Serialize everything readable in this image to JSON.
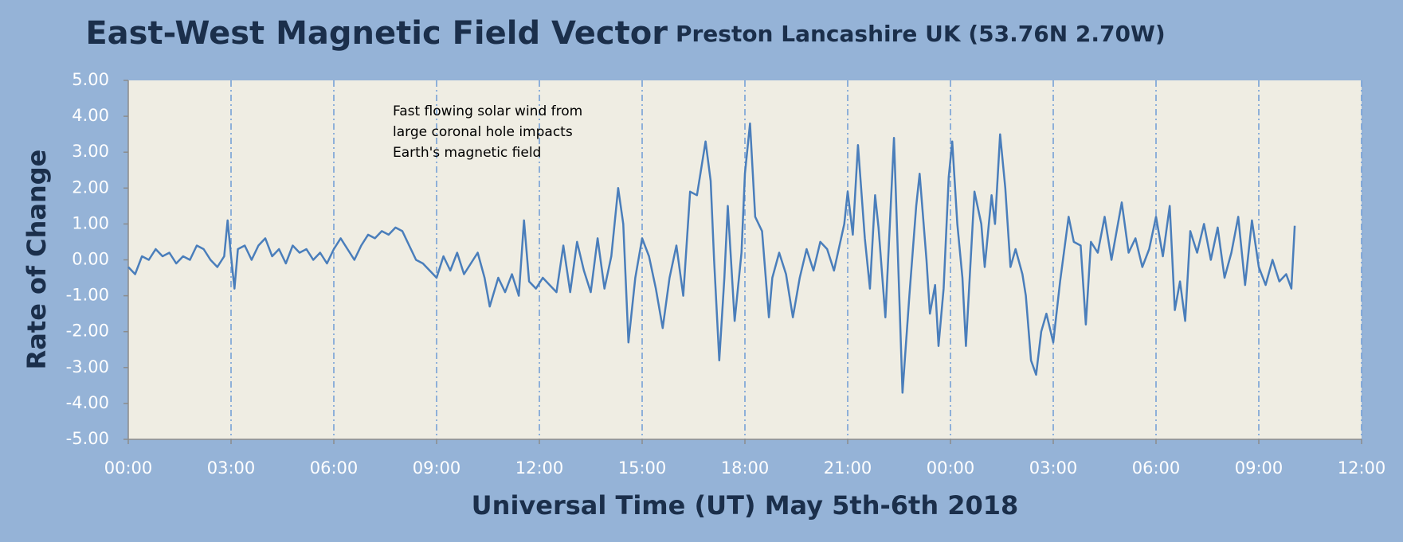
{
  "chart_data": {
    "type": "line",
    "title": "East-West Magnetic Field Vector",
    "subtitle": "Preston Lancashire UK (53.76N 2.70W)",
    "x_label": "Universal Time (UT) May 5th-6th 2018",
    "y_label": "Rate of Change",
    "annotation": [
      "Fast flowing solar wind from",
      "large coronal hole impacts",
      "Earth's magnetic field"
    ],
    "color": "#4a7ebb",
    "grid": true,
    "xlim": [
      0,
      36
    ],
    "ylim": [
      -5,
      5
    ],
    "xticks": [
      {
        "value": 0,
        "label": "00:00"
      },
      {
        "value": 3,
        "label": "03:00"
      },
      {
        "value": 6,
        "label": "06:00"
      },
      {
        "value": 9,
        "label": "09:00"
      },
      {
        "value": 12,
        "label": "12:00"
      },
      {
        "value": 15,
        "label": "15:00"
      },
      {
        "value": 18,
        "label": "18:00"
      },
      {
        "value": 21,
        "label": "21:00"
      },
      {
        "value": 24,
        "label": "00:00"
      },
      {
        "value": 27,
        "label": "03:00"
      },
      {
        "value": 30,
        "label": "06:00"
      },
      {
        "value": 33,
        "label": "09:00"
      },
      {
        "value": 36,
        "label": "12:00"
      }
    ],
    "yticks": [
      {
        "value": 5,
        "label": "5.00"
      },
      {
        "value": 4,
        "label": "4.00"
      },
      {
        "value": 3,
        "label": "3.00"
      },
      {
        "value": 2,
        "label": "2.00"
      },
      {
        "value": 1,
        "label": "1.00"
      },
      {
        "value": 0,
        "label": "0.00"
      },
      {
        "value": -1,
        "label": "-1.00"
      },
      {
        "value": -2,
        "label": "-2.00"
      },
      {
        "value": -3,
        "label": "-3.00"
      },
      {
        "value": -4,
        "label": "-4.00"
      },
      {
        "value": -5,
        "label": "-5.00"
      }
    ],
    "x": [
      0,
      0.2,
      0.4,
      0.6,
      0.8,
      1.0,
      1.2,
      1.4,
      1.6,
      1.8,
      2.0,
      2.2,
      2.4,
      2.6,
      2.8,
      2.9,
      3.0,
      3.1,
      3.2,
      3.4,
      3.6,
      3.8,
      4.0,
      4.2,
      4.4,
      4.6,
      4.8,
      5.0,
      5.2,
      5.4,
      5.6,
      5.8,
      6.0,
      6.2,
      6.4,
      6.6,
      6.8,
      7.0,
      7.2,
      7.4,
      7.6,
      7.8,
      8.0,
      8.2,
      8.4,
      8.6,
      8.8,
      9.0,
      9.2,
      9.4,
      9.6,
      9.8,
      10.0,
      10.2,
      10.4,
      10.55,
      10.8,
      11.0,
      11.2,
      11.4,
      11.55,
      11.7,
      11.9,
      12.1,
      12.3,
      12.5,
      12.7,
      12.9,
      13.1,
      13.3,
      13.5,
      13.7,
      13.9,
      14.1,
      14.3,
      14.45,
      14.6,
      14.8,
      15.0,
      15.2,
      15.4,
      15.6,
      15.8,
      16.0,
      16.2,
      16.4,
      16.6,
      16.85,
      17.0,
      17.1,
      17.25,
      17.4,
      17.5,
      17.7,
      17.9,
      18.0,
      18.15,
      18.3,
      18.5,
      18.7,
      18.8,
      19.0,
      19.2,
      19.4,
      19.6,
      19.8,
      20.0,
      20.2,
      20.4,
      20.6,
      20.9,
      21.0,
      21.15,
      21.3,
      21.5,
      21.65,
      21.8,
      21.9,
      22.1,
      22.35,
      22.6,
      22.8,
      23.0,
      23.1,
      23.3,
      23.4,
      23.55,
      23.65,
      23.8,
      23.95,
      24.05,
      24.2,
      24.35,
      24.45,
      24.7,
      24.9,
      25.0,
      25.2,
      25.3,
      25.45,
      25.6,
      25.75,
      25.9,
      26.1,
      26.2,
      26.35,
      26.5,
      26.65,
      26.8,
      27.0,
      27.2,
      27.45,
      27.6,
      27.8,
      27.95,
      28.1,
      28.3,
      28.5,
      28.7,
      29.0,
      29.2,
      29.4,
      29.6,
      29.8,
      30.0,
      30.2,
      30.4,
      30.55,
      30.7,
      30.85,
      31.0,
      31.2,
      31.4,
      31.6,
      31.8,
      32.0,
      32.2,
      32.4,
      32.6,
      32.8,
      33.0,
      33.2,
      33.4,
      33.6,
      33.8,
      33.95,
      34.05
    ],
    "values": [
      -0.2,
      -0.4,
      0.1,
      0.0,
      0.3,
      0.1,
      0.2,
      -0.1,
      0.1,
      0.0,
      0.4,
      0.3,
      0.0,
      -0.2,
      0.1,
      1.1,
      0.1,
      -0.8,
      0.3,
      0.4,
      0.0,
      0.4,
      0.6,
      0.1,
      0.3,
      -0.1,
      0.4,
      0.2,
      0.3,
      0.0,
      0.2,
      -0.1,
      0.3,
      0.6,
      0.3,
      0.0,
      0.4,
      0.7,
      0.6,
      0.8,
      0.7,
      0.9,
      0.8,
      0.4,
      0.0,
      -0.1,
      -0.3,
      -0.5,
      0.1,
      -0.3,
      0.2,
      -0.4,
      -0.1,
      0.2,
      -0.5,
      -1.3,
      -0.5,
      -0.9,
      -0.4,
      -1.0,
      1.1,
      -0.6,
      -0.8,
      -0.5,
      -0.7,
      -0.9,
      0.4,
      -0.9,
      0.5,
      -0.3,
      -0.9,
      0.6,
      -0.8,
      0.1,
      2.0,
      1.0,
      -2.3,
      -0.5,
      0.6,
      0.1,
      -0.8,
      -1.9,
      -0.5,
      0.4,
      -1.0,
      1.9,
      1.8,
      3.3,
      2.2,
      0.0,
      -2.8,
      -0.5,
      1.5,
      -1.7,
      0.2,
      2.4,
      3.8,
      1.2,
      0.8,
      -1.6,
      -0.5,
      0.2,
      -0.4,
      -1.6,
      -0.5,
      0.3,
      -0.3,
      0.5,
      0.3,
      -0.3,
      1.0,
      1.9,
      0.7,
      3.2,
      0.6,
      -0.8,
      1.8,
      0.9,
      -1.6,
      3.4,
      -3.7,
      -1.0,
      1.5,
      2.4,
      0.0,
      -1.5,
      -0.7,
      -2.4,
      -0.8,
      2.3,
      3.3,
      1.0,
      -0.5,
      -2.4,
      1.9,
      1.0,
      -0.2,
      1.8,
      1.0,
      3.5,
      2.0,
      -0.2,
      0.3,
      -0.4,
      -1.0,
      -2.8,
      -3.2,
      -2.0,
      -1.5,
      -2.3,
      -0.6,
      1.2,
      0.5,
      0.4,
      -1.8,
      0.5,
      0.2,
      1.2,
      0.0,
      1.6,
      0.2,
      0.6,
      -0.2,
      0.3,
      1.2,
      0.1,
      1.5,
      -1.4,
      -0.6,
      -1.7,
      0.8,
      0.2,
      1.0,
      0.0,
      0.9,
      -0.5,
      0.2,
      1.2,
      -0.7,
      1.1,
      -0.2,
      -0.7,
      0.0,
      -0.6,
      -0.4,
      -0.8,
      0.95
    ]
  }
}
